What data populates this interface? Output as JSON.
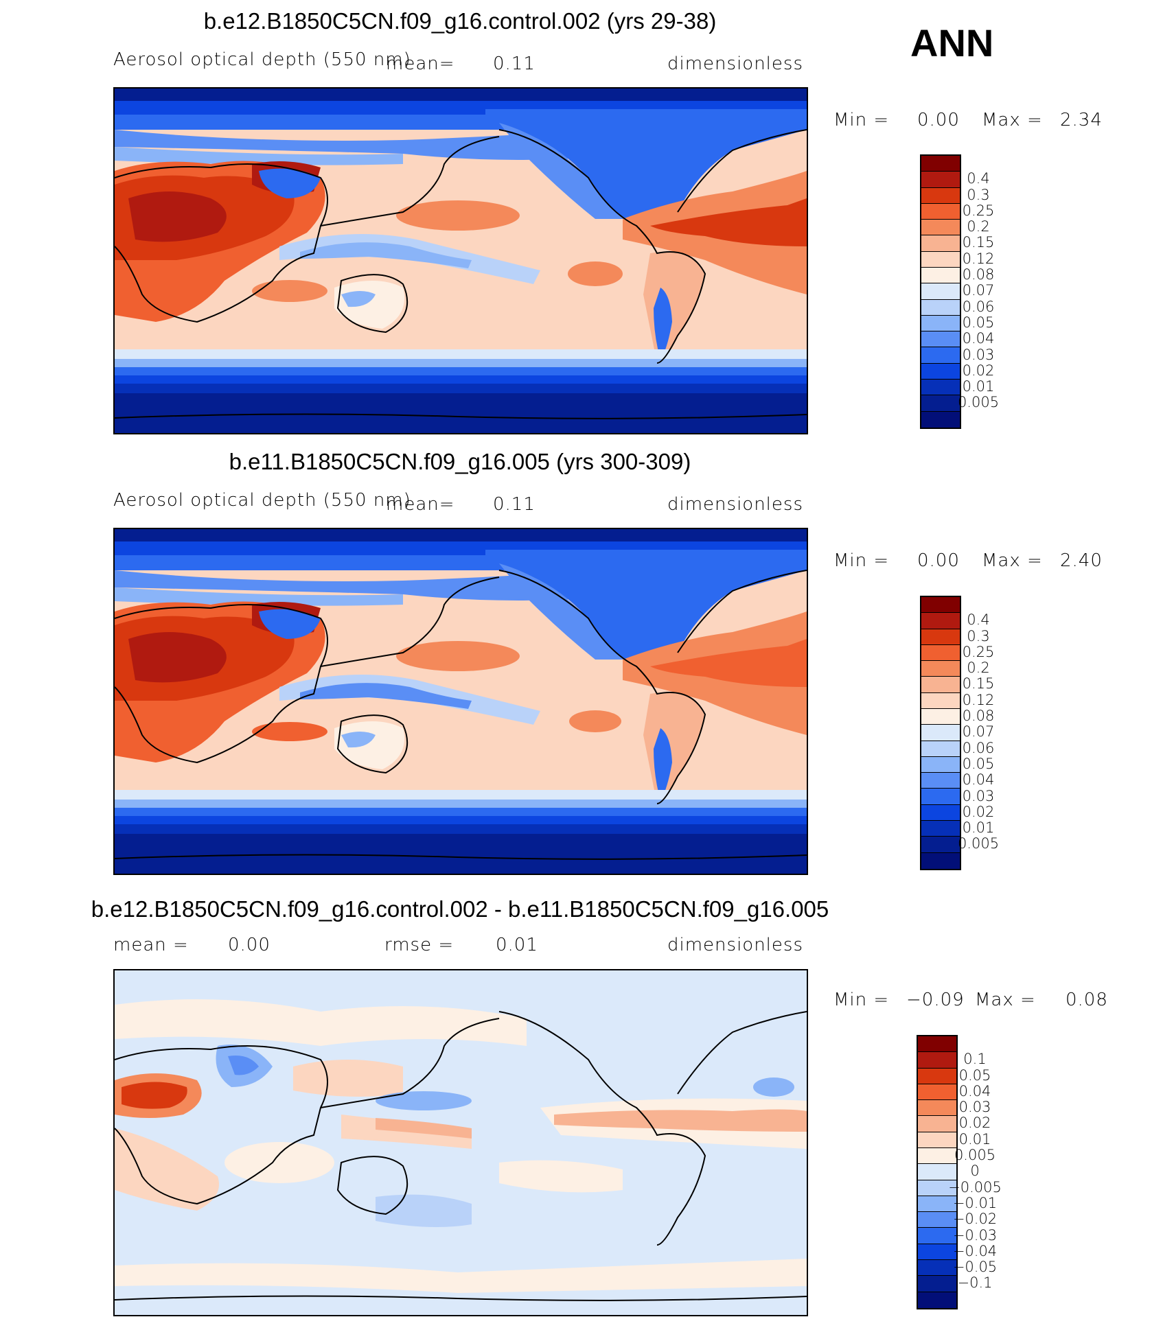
{
  "season": "ANN",
  "panels": [
    {
      "title": "b.e12.B1850C5CN.f09_g16.control.002 (yrs 29-38)",
      "left_label": "Aerosol optical depth (550 nm)",
      "mean_label": "mean=",
      "mean_value": "0.11",
      "units": "dimensionless",
      "min_label": "Min =",
      "min_value": "0.00",
      "max_label": "Max =",
      "max_value": "2.34",
      "colorbar": {
        "colors": [
          "#800000",
          "#b01a10",
          "#d8380f",
          "#f06030",
          "#f4895a",
          "#f8b392",
          "#fcd6c0",
          "#fdf0e4",
          "#dbe9fa",
          "#b9d2f9",
          "#8ab4f8",
          "#5a8ef5",
          "#2c6af0",
          "#0c45e0",
          "#0630b8",
          "#041e90",
          "#020f78"
        ],
        "levels": [
          "0.4",
          "0.3",
          "0.25",
          "0.2",
          "0.15",
          "0.12",
          "0.08",
          "0.07",
          "0.06",
          "0.05",
          "0.04",
          "0.03",
          "0.02",
          "0.01",
          "0.005"
        ]
      }
    },
    {
      "title": "b.e11.B1850C5CN.f09_g16.005 (yrs 300-309)",
      "left_label": "Aerosol optical depth (550 nm)",
      "mean_label": "mean=",
      "mean_value": "0.11",
      "units": "dimensionless",
      "min_label": "Min =",
      "min_value": "0.00",
      "max_label": "Max =",
      "max_value": "2.40",
      "colorbar": {
        "colors": [
          "#800000",
          "#b01a10",
          "#d8380f",
          "#f06030",
          "#f4895a",
          "#f8b392",
          "#fcd6c0",
          "#fdf0e4",
          "#dbe9fa",
          "#b9d2f9",
          "#8ab4f8",
          "#5a8ef5",
          "#2c6af0",
          "#0c45e0",
          "#0630b8",
          "#041e90",
          "#020f78"
        ],
        "levels": [
          "0.4",
          "0.3",
          "0.25",
          "0.2",
          "0.15",
          "0.12",
          "0.08",
          "0.07",
          "0.06",
          "0.05",
          "0.04",
          "0.03",
          "0.02",
          "0.01",
          "0.005"
        ]
      }
    },
    {
      "title": "b.e12.B1850C5CN.f09_g16.control.002 - b.e11.B1850C5CN.f09_g16.005",
      "mean_label": "mean =",
      "mean_value": "0.00",
      "rmse_label": "rmse =",
      "rmse_value": "0.01",
      "units": "dimensionless",
      "min_label": "Min =",
      "min_value": "−0.09",
      "max_label": "Max =",
      "max_value": "0.08",
      "colorbar": {
        "colors": [
          "#800000",
          "#b01a10",
          "#d8380f",
          "#f06030",
          "#f4895a",
          "#f8b392",
          "#fcd6c0",
          "#fdf0e4",
          "#dbe9fa",
          "#b9d2f9",
          "#8ab4f8",
          "#5a8ef5",
          "#2c6af0",
          "#0c45e0",
          "#0630b8",
          "#041e90",
          "#020f78"
        ],
        "levels": [
          "0.1",
          "0.05",
          "0.04",
          "0.03",
          "0.02",
          "0.01",
          "0.005",
          "0",
          "−0.005",
          "−0.01",
          "−0.02",
          "−0.03",
          "−0.04",
          "−0.05",
          "−0.1"
        ]
      }
    }
  ],
  "chart_data": {
    "type": "heatmap",
    "variable": "Aerosol optical depth (550 nm)",
    "units": "dimensionless",
    "season": "ANN",
    "maps": [
      {
        "title": "b.e12.B1850C5CN.f09_g16.control.002 (yrs 29-38)",
        "mean": 0.11,
        "min": 0.0,
        "max": 2.34,
        "contour_levels": [
          0.005,
          0.01,
          0.02,
          0.03,
          0.04,
          0.05,
          0.06,
          0.07,
          0.08,
          0.12,
          0.15,
          0.2,
          0.25,
          0.3,
          0.4
        ]
      },
      {
        "title": "b.e11.B1850C5CN.f09_g16.005 (yrs 300-309)",
        "mean": 0.11,
        "min": 0.0,
        "max": 2.4,
        "contour_levels": [
          0.005,
          0.01,
          0.02,
          0.03,
          0.04,
          0.05,
          0.06,
          0.07,
          0.08,
          0.12,
          0.15,
          0.2,
          0.25,
          0.3,
          0.4
        ]
      },
      {
        "title": "b.e12.B1850C5CN.f09_g16.control.002 - b.e11.B1850C5CN.f09_g16.005",
        "mean": 0.0,
        "rmse": 0.01,
        "min": -0.09,
        "max": 0.08,
        "contour_levels": [
          -0.1,
          -0.05,
          -0.04,
          -0.03,
          -0.02,
          -0.01,
          -0.005,
          0,
          0.005,
          0.01,
          0.02,
          0.03,
          0.04,
          0.05,
          0.1
        ]
      }
    ]
  }
}
